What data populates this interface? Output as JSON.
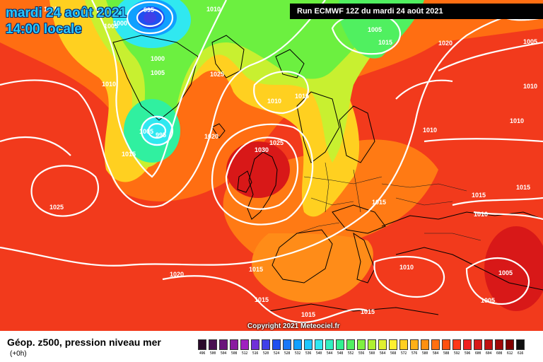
{
  "header": {
    "date_line_1": "mardi 24 août 2021",
    "date_line_2": "14:00 locale",
    "run_info": "Run ECMWF 12Z du mardi 24 août 2021"
  },
  "copyright": "Copyright 2021 Meteociel.fr",
  "legend": {
    "title": "Géop. z500, pression niveau mer",
    "subtitle": "(+0h)",
    "scale": [
      {
        "value": "496",
        "color": "#2a0a2a"
      },
      {
        "value": "500",
        "color": "#4a1050"
      },
      {
        "value": "504",
        "color": "#6a147a"
      },
      {
        "value": "508",
        "color": "#8a1aa0"
      },
      {
        "value": "512",
        "color": "#a020c0"
      },
      {
        "value": "516",
        "color": "#7030d8"
      },
      {
        "value": "520",
        "color": "#4040e8"
      },
      {
        "value": "524",
        "color": "#2050f0"
      },
      {
        "value": "528",
        "color": "#1878f8"
      },
      {
        "value": "532",
        "color": "#10a0ff"
      },
      {
        "value": "536",
        "color": "#20c8ff"
      },
      {
        "value": "540",
        "color": "#30e8f0"
      },
      {
        "value": "544",
        "color": "#30f0c0"
      },
      {
        "value": "548",
        "color": "#30f090"
      },
      {
        "value": "552",
        "color": "#50f060"
      },
      {
        "value": "556",
        "color": "#80f040"
      },
      {
        "value": "560",
        "color": "#b0f030"
      },
      {
        "value": "564",
        "color": "#e0f030"
      },
      {
        "value": "568",
        "color": "#fff030"
      },
      {
        "value": "572",
        "color": "#ffd020"
      },
      {
        "value": "576",
        "color": "#ffb018"
      },
      {
        "value": "580",
        "color": "#ff9010"
      },
      {
        "value": "584",
        "color": "#ff7010"
      },
      {
        "value": "588",
        "color": "#ff5010"
      },
      {
        "value": "592",
        "color": "#ff3818"
      },
      {
        "value": "596",
        "color": "#f02020"
      },
      {
        "value": "600",
        "color": "#d81818"
      },
      {
        "value": "604",
        "color": "#c01010"
      },
      {
        "value": "608",
        "color": "#a00808"
      },
      {
        "value": "612",
        "color": "#800000"
      },
      {
        "value": "616",
        "color": "#101010"
      }
    ]
  },
  "pressure_labels": [
    "1015",
    "995",
    "1010",
    "1005",
    "1000",
    "1005",
    "1015",
    "1020",
    "1000",
    "1005",
    "1025",
    "1010",
    "1010",
    "1015",
    "1030",
    "1005",
    "995",
    "1020",
    "1025",
    "1015",
    "1025",
    "1015",
    "1020",
    "1015",
    "1010",
    "1015",
    "1015",
    "1015",
    "1010",
    "1010",
    "1015",
    "1010",
    "1015",
    "1005",
    "1005",
    "1020",
    "1005",
    "1010"
  ]
}
